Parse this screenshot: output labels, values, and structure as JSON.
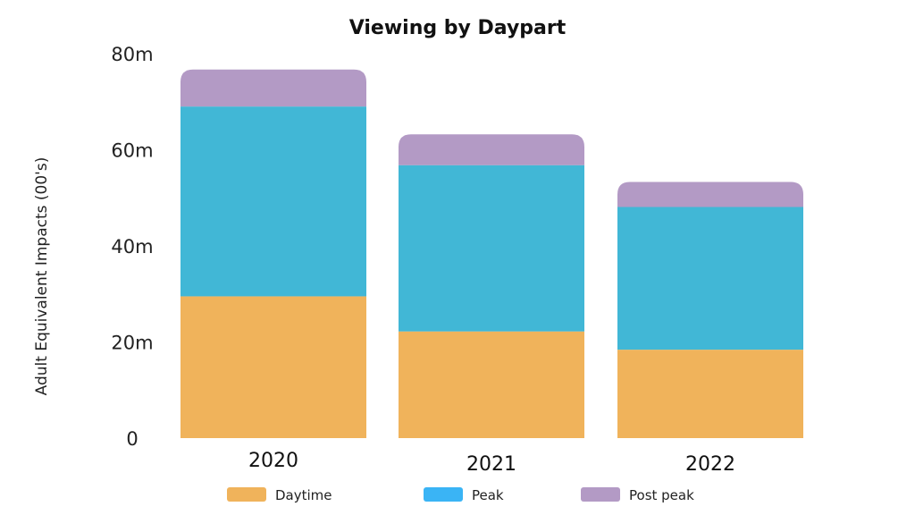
{
  "chart_data": {
    "type": "bar",
    "stacked": true,
    "title": "Viewing by Daypart",
    "xlabel": "",
    "ylabel": "Adult Equivalent Impacts (00's)",
    "categories": [
      "2020",
      "2021",
      "2022"
    ],
    "ylim": [
      0,
      80
    ],
    "yticks": [
      {
        "value": 0,
        "label": "0"
      },
      {
        "value": 20,
        "label": "20m"
      },
      {
        "value": 40,
        "label": "40m"
      },
      {
        "value": 60,
        "label": "60m"
      },
      {
        "value": 80,
        "label": "80m"
      }
    ],
    "grid": false,
    "legend_position": "bottom",
    "series": [
      {
        "name": "Daytime",
        "values": [
          29.5,
          22.2,
          18.4
        ],
        "color": "#F0B35B",
        "legend_color": "#F0B35B"
      },
      {
        "name": "Peak",
        "values": [
          39.5,
          34.6,
          29.7
        ],
        "color": "#41B7D6",
        "legend_color": "#3AB4F5"
      },
      {
        "name": "Post peak",
        "values": [
          7.7,
          6.4,
          5.2
        ],
        "color": "#B39AC5",
        "legend_color": "#B39AC5"
      }
    ]
  }
}
